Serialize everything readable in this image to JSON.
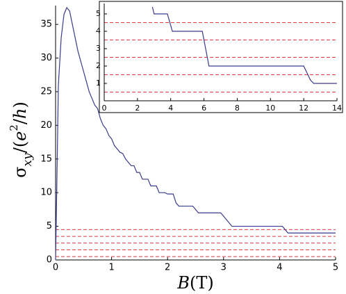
{
  "chart_data": [
    {
      "type": "line",
      "xlabel": [
        "B",
        "(T)"
      ],
      "ylabel": [
        "σ",
        "xy",
        "/(",
        "e",
        "2",
        "/",
        "h",
        ")"
      ],
      "xlim": [
        0,
        5
      ],
      "ylim": [
        0,
        37.8
      ],
      "xticks": [
        0,
        1,
        2,
        3,
        4,
        5
      ],
      "yticks": [
        0,
        5,
        10,
        15,
        20,
        25,
        30,
        35
      ],
      "reference_lines": {
        "color": "#e0393e",
        "values": [
          0.5,
          1.5,
          2.5,
          3.5,
          4.5
        ]
      },
      "series": [
        {
          "color": "#3a3a8c",
          "x": [
            0,
            0.02,
            0.05,
            0.1,
            0.15,
            0.2,
            0.25,
            0.3,
            0.4,
            0.5,
            0.6,
            0.7,
            0.75,
            0.8,
            0.85,
            0.9,
            0.95,
            1.0,
            1.05,
            1.1,
            1.15,
            1.2,
            1.25,
            1.3,
            1.35,
            1.4,
            1.45,
            1.5,
            1.55,
            1.65,
            1.7,
            1.8,
            1.85,
            1.95,
            2.0,
            2.1,
            2.15,
            2.2,
            2.45,
            2.55,
            2.95,
            3.1,
            3.15,
            4.05,
            4.15,
            5.0
          ],
          "values": [
            0,
            10,
            26,
            33,
            36.5,
            37.5,
            37,
            35,
            31,
            28,
            25,
            23,
            22.5,
            21,
            20,
            19.5,
            18.5,
            18,
            17,
            16.5,
            16,
            15.8,
            15,
            14.5,
            14,
            14,
            13,
            13,
            12,
            12,
            11,
            11,
            10,
            10,
            9.8,
            9.8,
            8.5,
            8,
            8,
            7,
            7,
            5.5,
            5,
            5,
            4,
            4
          ]
        }
      ]
    },
    {
      "type": "line",
      "xlim": [
        0,
        14
      ],
      "ylim": [
        0,
        5.6
      ],
      "xticks": [
        0,
        2,
        4,
        6,
        8,
        10,
        12,
        14
      ],
      "yticks": [
        1,
        2,
        3,
        4,
        5
      ],
      "reference_lines": {
        "color": "#e0393e",
        "values": [
          0.5,
          1.5,
          2.5,
          3.5,
          4.5
        ]
      },
      "series": [
        {
          "color": "#3a3a8c",
          "x": [
            2.9,
            3.0,
            3.8,
            4.1,
            5.9,
            6.2,
            6.3,
            12.0,
            12.4,
            12.6,
            14.0
          ],
          "values": [
            5.4,
            5,
            5,
            4,
            4,
            2.5,
            2,
            2,
            1.2,
            1,
            1
          ]
        }
      ]
    }
  ]
}
